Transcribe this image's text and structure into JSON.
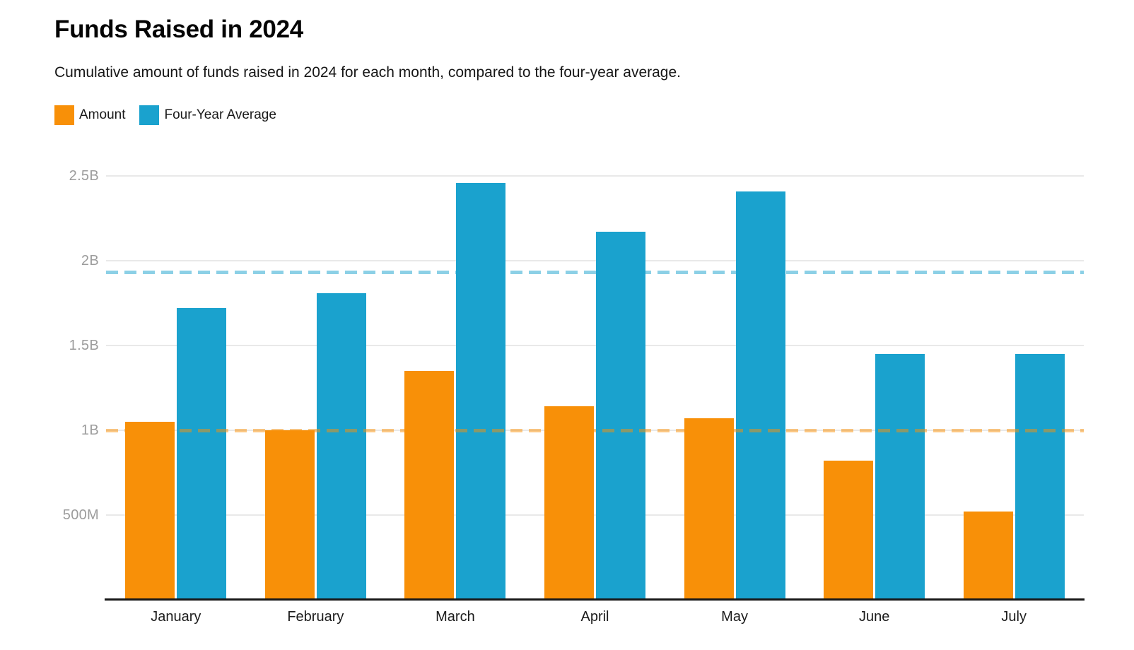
{
  "header": {
    "title": "Funds Raised in 2024",
    "subtitle": "Cumulative amount of funds raised in 2024 for each month, compared to the four-year average."
  },
  "legend": {
    "items": [
      {
        "label": "Amount",
        "color": "#F89008"
      },
      {
        "label": "Four-Year Average",
        "color": "#1AA2CE"
      }
    ]
  },
  "chart_data": {
    "type": "bar",
    "title": "Funds Raised in 2024",
    "categories": [
      "January",
      "February",
      "March",
      "April",
      "May",
      "June",
      "July"
    ],
    "series": [
      {
        "name": "Amount",
        "color": "#F89008",
        "values": [
          1.05,
          1.0,
          1.35,
          1.14,
          1.07,
          0.82,
          0.52
        ]
      },
      {
        "name": "Four-Year Average",
        "color": "#1AA2CE",
        "values": [
          1.72,
          1.81,
          2.46,
          2.17,
          2.41,
          1.45,
          1.45
        ]
      }
    ],
    "values_unit": "billions",
    "ylim": [
      0,
      2.5
    ],
    "y_axis": {
      "ticks": [
        {
          "label": "2.5B",
          "value": 2.5
        },
        {
          "label": "2B",
          "value": 2.0
        },
        {
          "label": "1.5B",
          "value": 1.5
        },
        {
          "label": "1B",
          "value": 1.0
        },
        {
          "label": "500M",
          "value": 0.5
        }
      ]
    },
    "reference_lines": [
      {
        "series": "Amount",
        "value": 1.0,
        "style": "dashed",
        "color": "rgba(248,144,8,0.5)"
      },
      {
        "series": "Four-Year Average",
        "value": 1.93,
        "style": "dashed",
        "color": "rgba(26,162,206,0.5)"
      }
    ],
    "grid": true,
    "legend_position": "top-left",
    "xlabel": "",
    "ylabel": ""
  }
}
